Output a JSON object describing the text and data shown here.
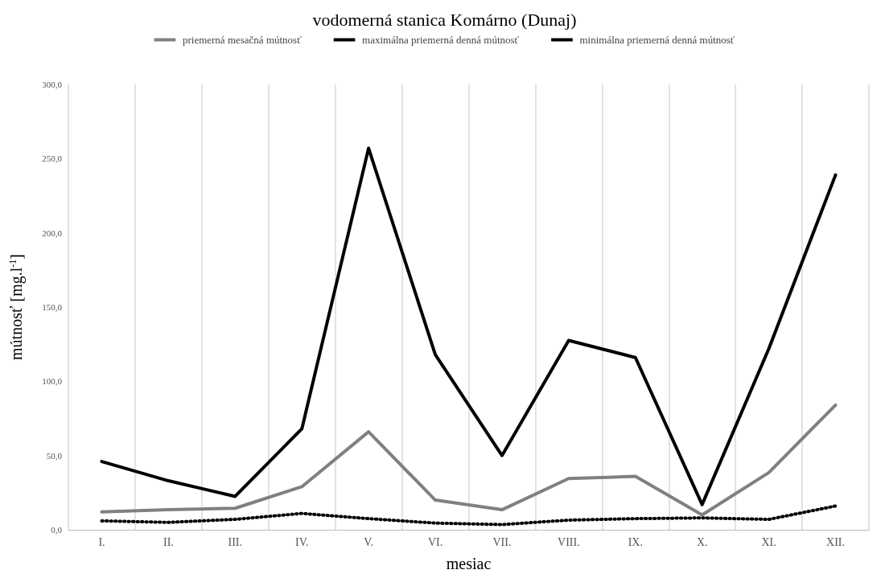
{
  "chart_data": {
    "type": "line",
    "title": "vodomerná stanica Komárno (Dunaj)",
    "xlabel": "mesiac",
    "ylabel": "mútnosť [mg.l$^{-1}$]",
    "categories": [
      "I.",
      "II.",
      "III.",
      "IV.",
      "V.",
      "VI.",
      "VII.",
      "VIII.",
      "IX.",
      "X.",
      "XI.",
      "XII."
    ],
    "series": [
      {
        "name": "priemerná mesačná mútnosť",
        "color": "#808080",
        "line_style": "solid",
        "values": [
          12,
          13.5,
          14.5,
          29,
          66,
          20,
          13.5,
          34.5,
          36,
          10,
          38.5,
          84
        ]
      },
      {
        "name": "maximálna priemerná denná mútnosť",
        "color": "#000000",
        "line_style": "solid",
        "values": [
          46,
          33,
          22.5,
          68,
          257,
          118,
          50,
          127.5,
          116,
          17,
          122,
          239
        ]
      },
      {
        "name": "minimálna priemerná denná mútnosť",
        "color": "#000000",
        "line_style": "dotted",
        "values": [
          6,
          5,
          7,
          11,
          7.5,
          4.5,
          3.5,
          6.5,
          7.5,
          8,
          7,
          16
        ]
      }
    ],
    "ylim": [
      0,
      300
    ],
    "yticks": [
      {
        "value": 0,
        "label": "0,0"
      },
      {
        "value": 50,
        "label": "50,0"
      },
      {
        "value": 100,
        "label": "100,0"
      },
      {
        "value": 150,
        "label": "150,0"
      },
      {
        "value": 200,
        "label": "200,0"
      },
      {
        "value": 250,
        "label": "250,0"
      },
      {
        "value": 300,
        "label": "300,0"
      }
    ],
    "grid": "x",
    "legend": "top",
    "marker": "none"
  }
}
